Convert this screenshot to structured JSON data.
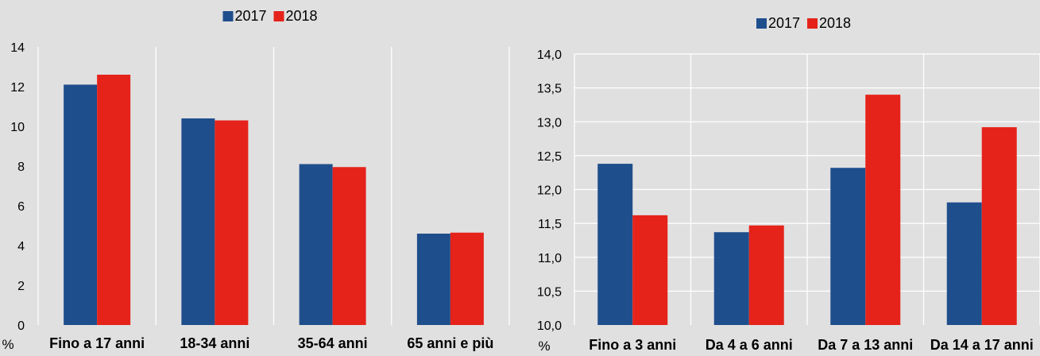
{
  "chart_data": [
    {
      "type": "bar",
      "title": "",
      "xlabel": "",
      "ylabel": "%",
      "ylim": [
        0,
        14
      ],
      "yticks": [
        "0",
        "2",
        "4",
        "6",
        "8",
        "10",
        "12",
        "14"
      ],
      "categories": [
        "Fino a 17 anni",
        "18-34 anni",
        "35-64 anni",
        "65 anni e più"
      ],
      "series": [
        {
          "name": "2017",
          "color": "#1f4e8c",
          "values": [
            12.1,
            10.4,
            8.1,
            4.6
          ]
        },
        {
          "name": "2018",
          "color": "#e5231b",
          "values": [
            12.6,
            10.3,
            7.95,
            4.65
          ]
        }
      ],
      "grid": "vertical",
      "legend": "top-center"
    },
    {
      "type": "bar",
      "title": "",
      "xlabel": "",
      "ylabel": "%",
      "ylim": [
        10.0,
        14.0
      ],
      "yticks": [
        "10,0",
        "10,5",
        "11,0",
        "11,5",
        "12,0",
        "12,5",
        "13,0",
        "13,5",
        "14,0"
      ],
      "categories": [
        "Fino a 3 anni",
        "Da 4 a 6 anni",
        "Da 7 a 13 anni",
        "Da 14 a 17 anni"
      ],
      "series": [
        {
          "name": "2017",
          "color": "#1f4e8c",
          "values": [
            12.38,
            11.37,
            12.32,
            11.81
          ]
        },
        {
          "name": "2018",
          "color": "#e5231b",
          "values": [
            11.62,
            11.47,
            13.4,
            12.92
          ]
        }
      ],
      "grid": "both",
      "legend": "top-center"
    }
  ]
}
